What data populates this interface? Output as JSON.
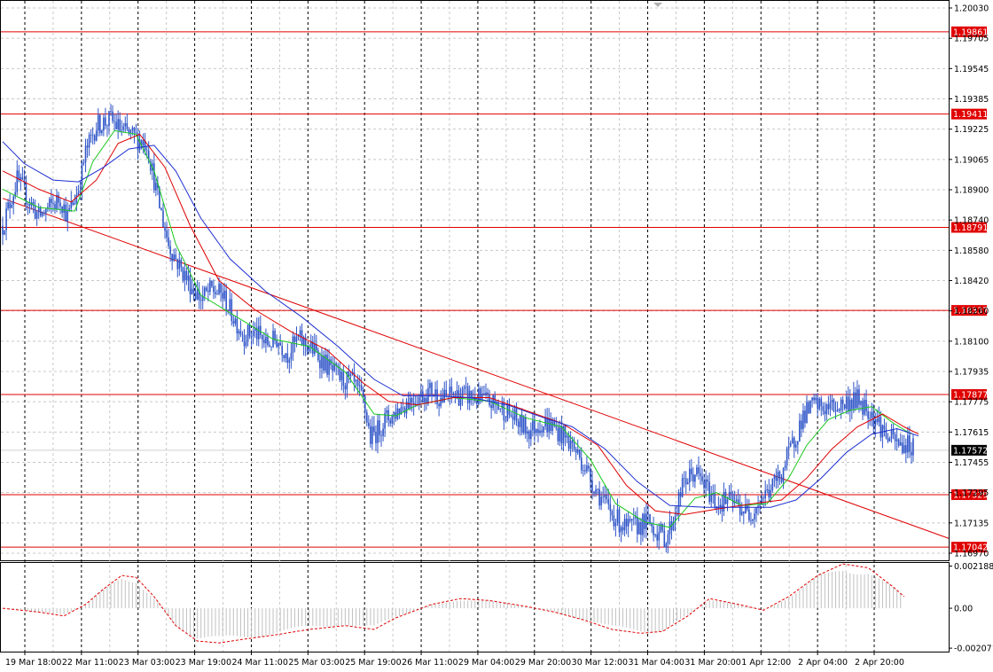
{
  "chart_data": {
    "type": "candlestick",
    "price_axis": {
      "ylim": [
        1.1697,
        1.2003
      ],
      "ticks": [
        "1.20030",
        "1.19705",
        "1.19545",
        "1.19385",
        "1.19225",
        "1.19065",
        "1.18900",
        "1.18740",
        "1.18580",
        "1.18420",
        "1.18260",
        "1.18100",
        "1.17935",
        "1.17775",
        "1.17615",
        "1.17455",
        "1.17295",
        "1.17135",
        "1.16970"
      ],
      "current_price": "1.17572"
    },
    "time_axis": {
      "labels": [
        "19 Mar 18:00",
        "22 Mar 11:00",
        "23 Mar 03:00",
        "23 Mar 19:00",
        "24 Mar 11:00",
        "25 Mar 03:00",
        "25 Mar 19:00",
        "26 Mar 11:00",
        "29 Mar 04:00",
        "29 Mar 20:00",
        "30 Mar 12:00",
        "31 Mar 04:00",
        "31 Mar 20:00",
        "1 Apr 12:00",
        "2 Apr 04:00",
        "2 Apr 20:00"
      ]
    },
    "levels": [
      {
        "label": "1.19861",
        "value": 1.19861
      },
      {
        "label": "1.19411",
        "value": 1.19411
      },
      {
        "label": "1.18791",
        "value": 1.18791
      },
      {
        "label": "1.18337",
        "value": 1.18337
      },
      {
        "label": "1.17877",
        "value": 1.17877
      },
      {
        "label": "1.17329",
        "value": 1.17329
      },
      {
        "label": "1.17042",
        "value": 1.17042
      }
    ],
    "trendline": {
      "from": [
        0,
        1.1895
      ],
      "to": [
        224,
        1.1709
      ]
    },
    "price_path": [
      [
        0,
        1.188
      ],
      [
        8,
        1.1905
      ],
      [
        14,
        1.1895
      ],
      [
        20,
        1.1885
      ],
      [
        26,
        1.189
      ],
      [
        32,
        1.1895
      ],
      [
        36,
        1.1885
      ],
      [
        42,
        1.19
      ],
      [
        46,
        1.192
      ],
      [
        52,
        1.1935
      ],
      [
        60,
        1.1938
      ],
      [
        66,
        1.1932
      ],
      [
        74,
        1.1928
      ],
      [
        80,
        1.1925
      ],
      [
        86,
        1.1895
      ],
      [
        92,
        1.187
      ],
      [
        98,
        1.1858
      ],
      [
        104,
        1.1848
      ],
      [
        110,
        1.184
      ],
      [
        116,
        1.1845
      ],
      [
        122,
        1.1842
      ],
      [
        128,
        1.183
      ],
      [
        134,
        1.182
      ],
      [
        140,
        1.1822
      ],
      [
        146,
        1.1815
      ],
      [
        152,
        1.1818
      ],
      [
        158,
        1.181
      ],
      [
        164,
        1.1818
      ],
      [
        170,
        1.1814
      ],
      [
        176,
        1.1808
      ],
      [
        182,
        1.1801
      ],
      [
        188,
        1.1796
      ],
      [
        194,
        1.1794
      ],
      [
        200,
        1.1784
      ],
      [
        204,
        1.1764
      ],
      [
        208,
        1.1768
      ],
      [
        212,
        1.1774
      ],
      [
        216,
        1.1776
      ],
      [
        220,
        1.178
      ],
      [
        226,
        1.1785
      ],
      [
        232,
        1.1787
      ],
      [
        238,
        1.179
      ],
      [
        244,
        1.1785
      ],
      [
        250,
        1.1788
      ],
      [
        256,
        1.1787
      ],
      [
        262,
        1.1786
      ],
      [
        268,
        1.1784
      ],
      [
        274,
        1.1782
      ],
      [
        280,
        1.1778
      ],
      [
        286,
        1.1772
      ],
      [
        292,
        1.1768
      ],
      [
        298,
        1.1772
      ],
      [
        304,
        1.1771
      ],
      [
        310,
        1.1766
      ],
      [
        316,
        1.176
      ],
      [
        322,
        1.175
      ],
      [
        328,
        1.1738
      ],
      [
        334,
        1.1728
      ],
      [
        340,
        1.172
      ],
      [
        346,
        1.1714
      ],
      [
        352,
        1.1716
      ],
      [
        358,
        1.1718
      ],
      [
        364,
        1.1712
      ],
      [
        368,
        1.1709
      ],
      [
        372,
        1.172
      ],
      [
        378,
        1.174
      ],
      [
        384,
        1.1745
      ],
      [
        390,
        1.1737
      ],
      [
        396,
        1.1728
      ],
      [
        402,
        1.173
      ],
      [
        408,
        1.1727
      ],
      [
        414,
        1.1722
      ],
      [
        420,
        1.173
      ],
      [
        426,
        1.1736
      ],
      [
        432,
        1.1745
      ],
      [
        438,
        1.176
      ],
      [
        444,
        1.1776
      ],
      [
        450,
        1.1782
      ],
      [
        456,
        1.178
      ],
      [
        462,
        1.1781
      ],
      [
        468,
        1.1783
      ],
      [
        474,
        1.1785
      ],
      [
        480,
        1.178
      ],
      [
        486,
        1.1772
      ],
      [
        490,
        1.1765
      ],
      [
        494,
        1.1762
      ],
      [
        498,
        1.176
      ]
    ],
    "ma_green": [
      [
        0,
        1.19
      ],
      [
        20,
        1.189
      ],
      [
        40,
        1.1888
      ],
      [
        50,
        1.1915
      ],
      [
        62,
        1.1932
      ],
      [
        74,
        1.193
      ],
      [
        84,
        1.191
      ],
      [
        96,
        1.187
      ],
      [
        110,
        1.1842
      ],
      [
        130,
        1.183
      ],
      [
        150,
        1.1818
      ],
      [
        170,
        1.1814
      ],
      [
        190,
        1.18
      ],
      [
        206,
        1.1777
      ],
      [
        218,
        1.1776
      ],
      [
        230,
        1.1782
      ],
      [
        250,
        1.1786
      ],
      [
        270,
        1.1784
      ],
      [
        290,
        1.1775
      ],
      [
        310,
        1.177
      ],
      [
        326,
        1.1752
      ],
      [
        340,
        1.1728
      ],
      [
        356,
        1.1718
      ],
      [
        370,
        1.1715
      ],
      [
        384,
        1.1731
      ],
      [
        396,
        1.1734
      ],
      [
        410,
        1.1727
      ],
      [
        424,
        1.1728
      ],
      [
        436,
        1.1742
      ],
      [
        446,
        1.176
      ],
      [
        458,
        1.1774
      ],
      [
        470,
        1.1779
      ],
      [
        482,
        1.1781
      ],
      [
        494,
        1.1772
      ],
      [
        504,
        1.1766
      ]
    ],
    "ma_red": [
      [
        0,
        1.191
      ],
      [
        20,
        1.19
      ],
      [
        38,
        1.1893
      ],
      [
        52,
        1.1905
      ],
      [
        64,
        1.1925
      ],
      [
        76,
        1.193
      ],
      [
        90,
        1.1912
      ],
      [
        104,
        1.188
      ],
      [
        120,
        1.185
      ],
      [
        140,
        1.1834
      ],
      [
        160,
        1.1822
      ],
      [
        180,
        1.1812
      ],
      [
        200,
        1.1794
      ],
      [
        214,
        1.1784
      ],
      [
        230,
        1.1782
      ],
      [
        250,
        1.1786
      ],
      [
        270,
        1.1786
      ],
      [
        290,
        1.1779
      ],
      [
        310,
        1.1772
      ],
      [
        330,
        1.176
      ],
      [
        346,
        1.1738
      ],
      [
        362,
        1.1724
      ],
      [
        378,
        1.1722
      ],
      [
        396,
        1.1725
      ],
      [
        416,
        1.1728
      ],
      [
        432,
        1.173
      ],
      [
        446,
        1.1742
      ],
      [
        460,
        1.1758
      ],
      [
        474,
        1.177
      ],
      [
        488,
        1.1777
      ],
      [
        500,
        1.177
      ],
      [
        508,
        1.1766
      ]
    ],
    "ma_blue": [
      [
        0,
        1.1926
      ],
      [
        12,
        1.1914
      ],
      [
        28,
        1.1905
      ],
      [
        42,
        1.1904
      ],
      [
        56,
        1.1912
      ],
      [
        70,
        1.1922
      ],
      [
        84,
        1.1924
      ],
      [
        96,
        1.191
      ],
      [
        110,
        1.1884
      ],
      [
        126,
        1.1862
      ],
      [
        146,
        1.1844
      ],
      [
        166,
        1.183
      ],
      [
        186,
        1.1814
      ],
      [
        206,
        1.1796
      ],
      [
        222,
        1.1787
      ],
      [
        240,
        1.1787
      ],
      [
        260,
        1.1786
      ],
      [
        280,
        1.1782
      ],
      [
        300,
        1.1775
      ],
      [
        316,
        1.177
      ],
      [
        334,
        1.1758
      ],
      [
        352,
        1.174
      ],
      [
        370,
        1.1727
      ],
      [
        390,
        1.1726
      ],
      [
        410,
        1.1726
      ],
      [
        426,
        1.1726
      ],
      [
        440,
        1.173
      ],
      [
        454,
        1.1742
      ],
      [
        468,
        1.1756
      ],
      [
        482,
        1.1766
      ],
      [
        496,
        1.1769
      ],
      [
        508,
        1.1765
      ]
    ],
    "oscillator": {
      "ticks": [
        "0.002188",
        "0.00",
        "-0.002071"
      ],
      "ylim": [
        -0.00225,
        0.00235
      ],
      "signal": [
        [
          0,
          0.0
        ],
        [
          20,
          -0.0002
        ],
        [
          34,
          -0.0004
        ],
        [
          46,
          0.0002
        ],
        [
          56,
          0.001
        ],
        [
          66,
          0.0017
        ],
        [
          74,
          0.0016
        ],
        [
          84,
          0.0006
        ],
        [
          96,
          -0.0009
        ],
        [
          108,
          -0.0017
        ],
        [
          120,
          -0.0018
        ],
        [
          134,
          -0.0016
        ],
        [
          150,
          -0.0014
        ],
        [
          170,
          -0.0011
        ],
        [
          190,
          -0.0009
        ],
        [
          206,
          -0.0011
        ],
        [
          218,
          -0.0005
        ],
        [
          238,
          0.0002
        ],
        [
          254,
          0.0005
        ],
        [
          270,
          0.0004
        ],
        [
          290,
          0.0001
        ],
        [
          306,
          -0.0002
        ],
        [
          322,
          -0.0006
        ],
        [
          338,
          -0.0011
        ],
        [
          354,
          -0.0013
        ],
        [
          366,
          -0.0012
        ],
        [
          380,
          -0.0004
        ],
        [
          392,
          0.0005
        ],
        [
          408,
          0.0002
        ],
        [
          422,
          -0.0001
        ],
        [
          436,
          0.0006
        ],
        [
          452,
          0.0017
        ],
        [
          466,
          0.0023
        ],
        [
          480,
          0.0021
        ],
        [
          494,
          0.0011
        ],
        [
          500,
          0.0006
        ]
      ]
    }
  }
}
